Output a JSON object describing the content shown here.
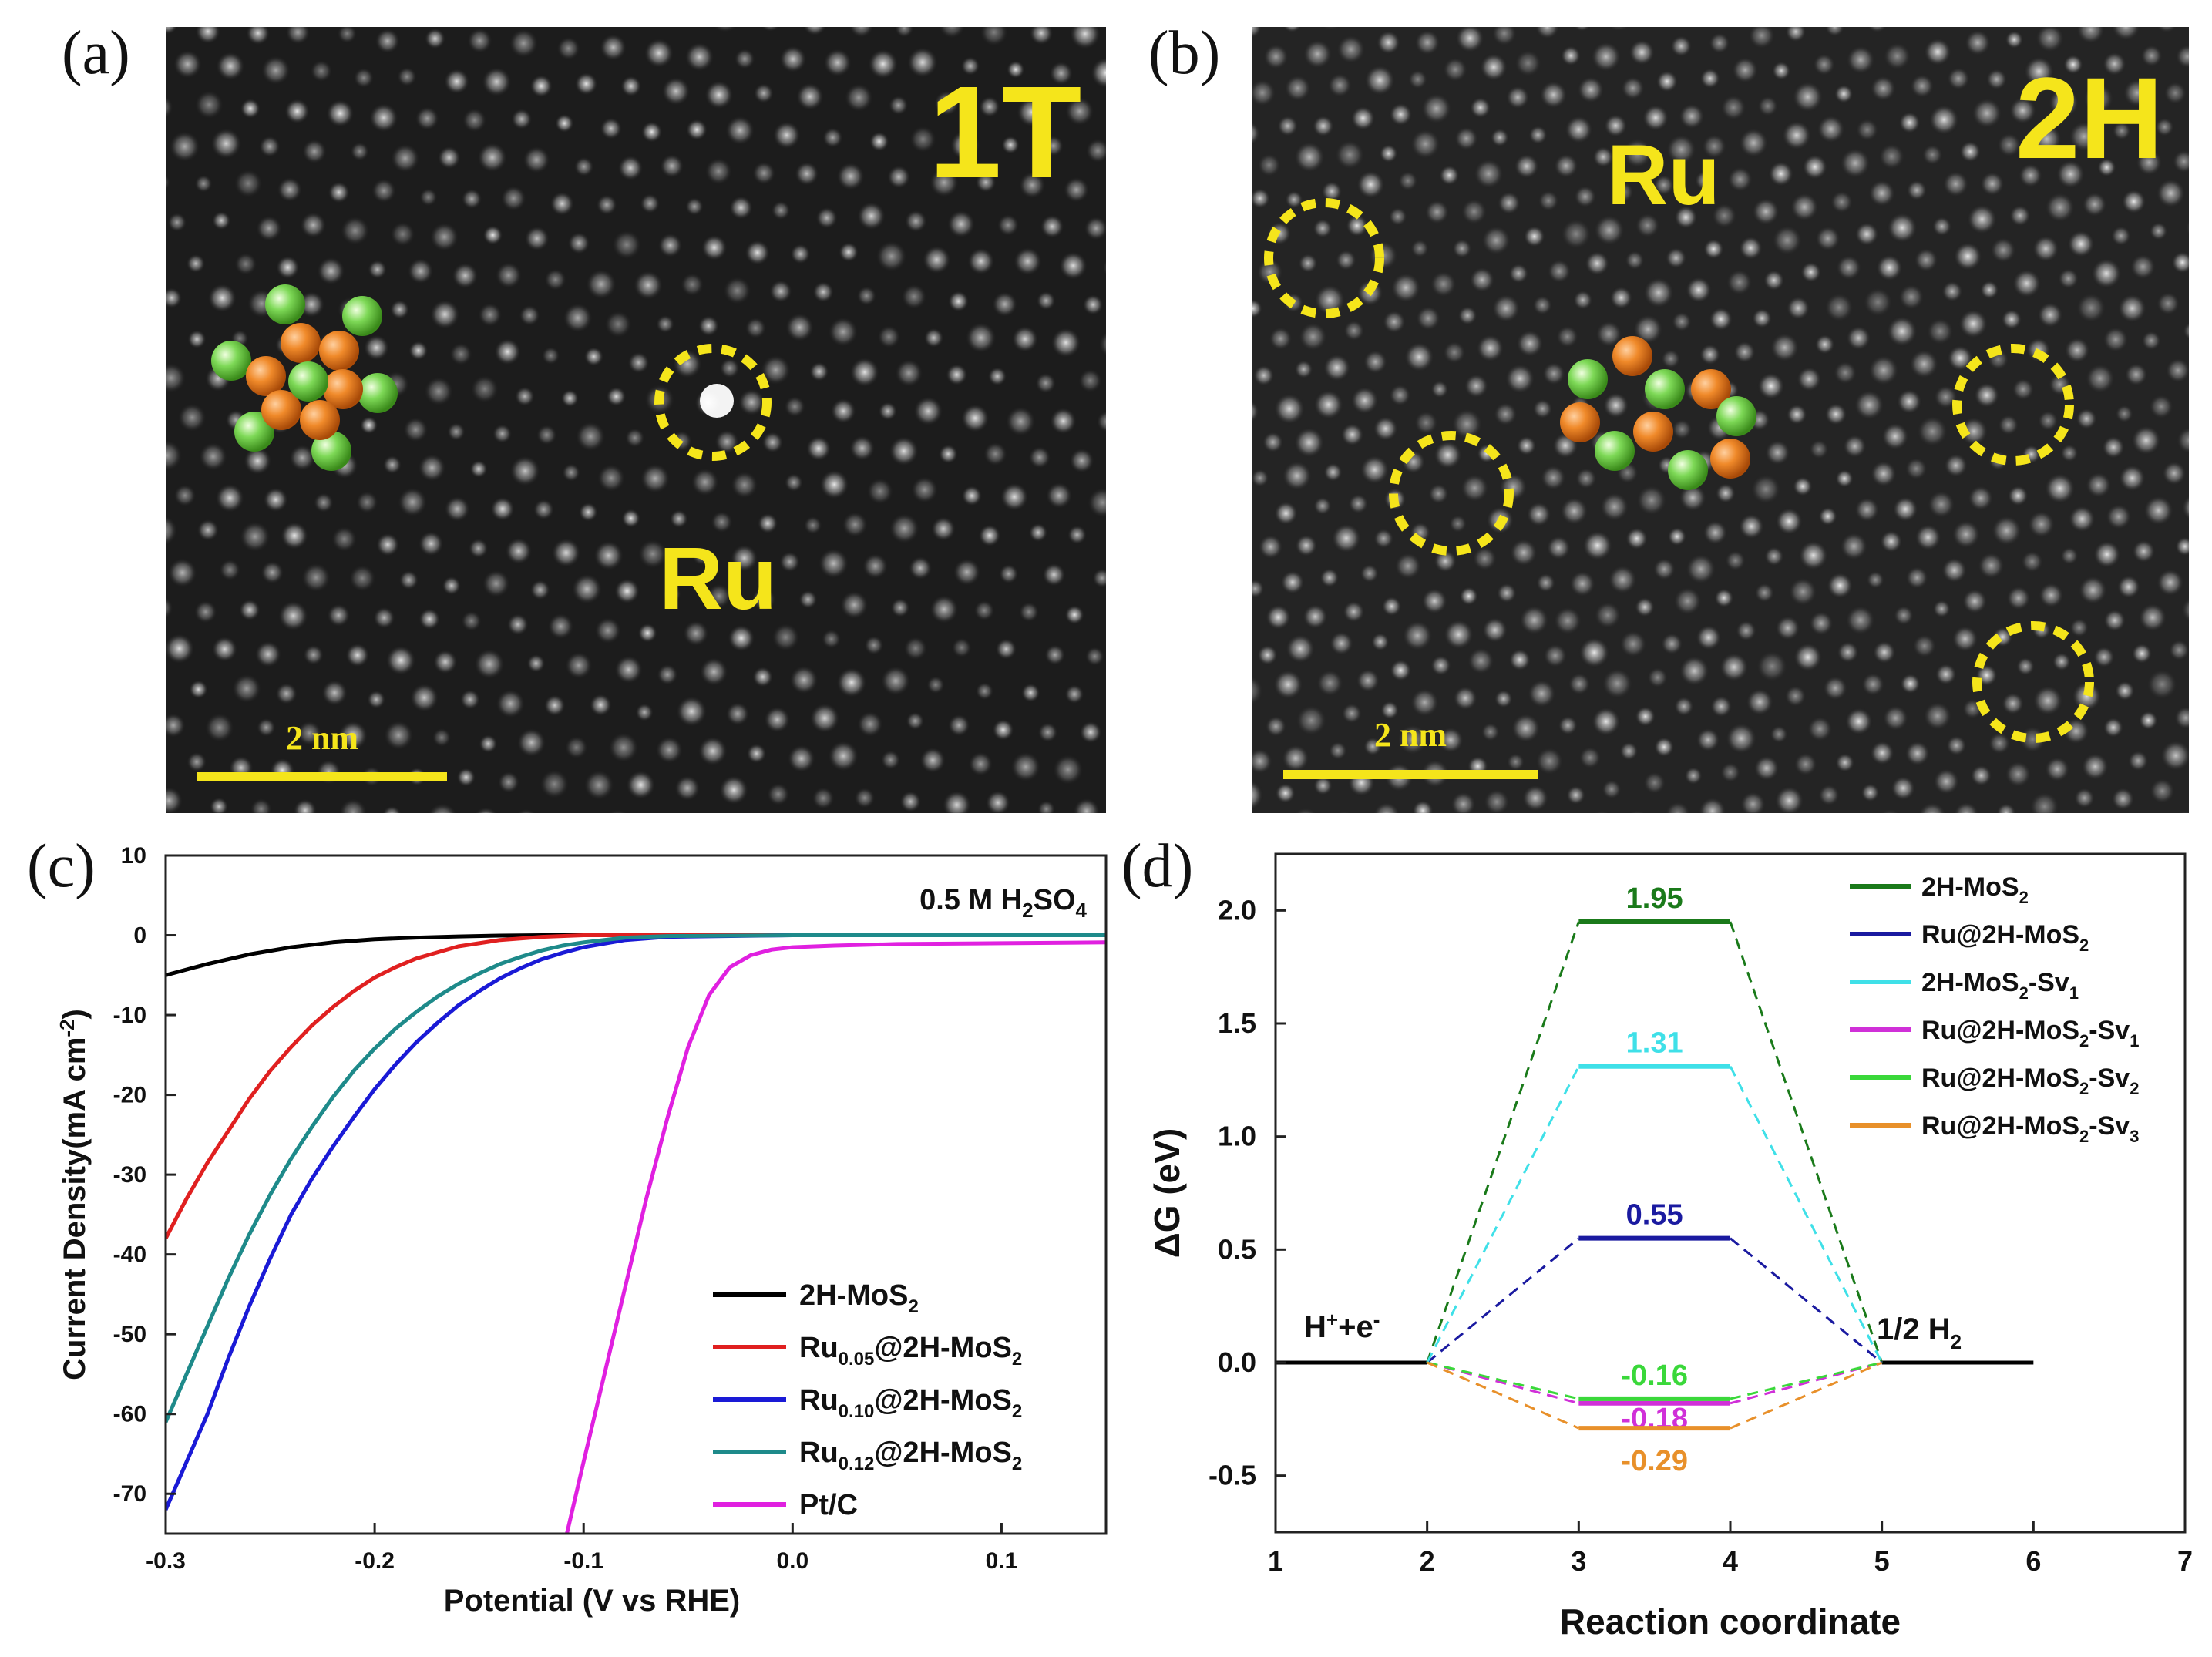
{
  "panels": {
    "a": {
      "label": "(a)",
      "phase": "1T",
      "atom_label": "Ru",
      "scale_bar": "2 nm"
    },
    "b": {
      "label": "(b)",
      "phase": "2H",
      "atom_label": "Ru",
      "scale_bar": "2 nm"
    },
    "c": {
      "label": "(c)"
    },
    "d": {
      "label": "(d)"
    }
  },
  "colors": {
    "yellow": "#f5e51b",
    "mo_orange": "#f08a2a",
    "s_green": "#7ed957",
    "tem_bg": "#1c1c1c"
  },
  "chart_data": [
    {
      "type": "line",
      "id": "c",
      "title": "",
      "annotation_main": "0.5 M H",
      "annotation_sub1": "2",
      "annotation_mid": "SO",
      "annotation_sub2": "4",
      "xlabel": "Potential (V vs RHE)",
      "ylabel_main": "Current Density(mA cm",
      "ylabel_sup": "-2",
      "ylabel_end": ")",
      "xlim": [
        -0.3,
        0.15
      ],
      "ylim": [
        -75,
        10
      ],
      "xticks": [
        -0.3,
        -0.2,
        -0.1,
        0.0,
        0.1
      ],
      "xtick_labels": [
        "-0.3",
        "-0.2",
        "-0.1",
        "0.0",
        "0.1"
      ],
      "yticks": [
        10,
        0,
        -10,
        -20,
        -30,
        -40,
        -50,
        -60,
        -70
      ],
      "ytick_labels": [
        "10",
        "0",
        "-10",
        "-20",
        "-30",
        "-40",
        "-50",
        "-60",
        "-70"
      ],
      "series": [
        {
          "name": "2H-MoS2",
          "legend_main": "2H-MoS",
          "legend_sub": "2",
          "legend_sub_pre": "",
          "legend_pre": "",
          "color": "#000000",
          "x": [
            -0.3,
            -0.28,
            -0.26,
            -0.24,
            -0.22,
            -0.2,
            -0.18,
            -0.16,
            -0.14,
            -0.12,
            -0.1,
            0.0,
            0.15
          ],
          "y": [
            -5.0,
            -3.6,
            -2.4,
            -1.5,
            -0.9,
            -0.5,
            -0.3,
            -0.15,
            -0.05,
            0,
            0,
            0,
            0
          ]
        },
        {
          "name": "Ru0.05@2H-MoS2",
          "legend_pre": "Ru",
          "legend_sub_pre": "0.05",
          "legend_main": "@2H-MoS",
          "legend_sub": "2",
          "color": "#e02020",
          "x": [
            -0.3,
            -0.29,
            -0.28,
            -0.27,
            -0.26,
            -0.25,
            -0.24,
            -0.23,
            -0.22,
            -0.21,
            -0.2,
            -0.19,
            -0.18,
            -0.16,
            -0.14,
            -0.12,
            -0.1,
            0.0,
            0.15
          ],
          "y": [
            -38,
            -33,
            -28.5,
            -24.5,
            -20.5,
            -17,
            -14,
            -11.3,
            -9,
            -7,
            -5.3,
            -4,
            -2.9,
            -1.4,
            -0.6,
            -0.2,
            0,
            0,
            0
          ]
        },
        {
          "name": "Ru0.10@2H-MoS2",
          "legend_pre": "Ru",
          "legend_sub_pre": "0.10",
          "legend_main": "@2H-MoS",
          "legend_sub": "2",
          "color": "#1a1ad6",
          "x": [
            -0.3,
            -0.29,
            -0.28,
            -0.27,
            -0.26,
            -0.25,
            -0.24,
            -0.23,
            -0.22,
            -0.21,
            -0.2,
            -0.19,
            -0.18,
            -0.17,
            -0.16,
            -0.15,
            -0.14,
            -0.13,
            -0.12,
            -0.11,
            -0.1,
            -0.08,
            -0.06,
            0.0,
            0.15
          ],
          "y": [
            -72,
            -66,
            -60,
            -53,
            -46.5,
            -40.5,
            -35,
            -30.5,
            -26.5,
            -22.8,
            -19.3,
            -16.2,
            -13.4,
            -11,
            -8.8,
            -7,
            -5.4,
            -4.1,
            -3,
            -2.2,
            -1.5,
            -0.6,
            -0.2,
            0,
            0
          ]
        },
        {
          "name": "Ru0.12@2H-MoS2",
          "legend_pre": "Ru",
          "legend_sub_pre": "0.12",
          "legend_main": "@2H-MoS",
          "legend_sub": "2",
          "color": "#1e8a8a",
          "x": [
            -0.3,
            -0.29,
            -0.28,
            -0.27,
            -0.26,
            -0.25,
            -0.24,
            -0.23,
            -0.22,
            -0.21,
            -0.2,
            -0.19,
            -0.18,
            -0.17,
            -0.16,
            -0.15,
            -0.14,
            -0.13,
            -0.12,
            -0.11,
            -0.1,
            -0.08,
            -0.06,
            0.0,
            0.15
          ],
          "y": [
            -61,
            -55,
            -49,
            -43,
            -37.5,
            -32.5,
            -28,
            -24,
            -20.3,
            -17,
            -14.2,
            -11.7,
            -9.6,
            -7.7,
            -6.1,
            -4.8,
            -3.6,
            -2.7,
            -1.9,
            -1.3,
            -0.9,
            -0.3,
            -0.1,
            0,
            0
          ]
        },
        {
          "name": "Pt/C",
          "legend_pre": "",
          "legend_sub_pre": "",
          "legend_main": "Pt/C",
          "legend_sub": "",
          "color": "#e020e0",
          "x": [
            -0.108,
            -0.1,
            -0.09,
            -0.08,
            -0.07,
            -0.06,
            -0.05,
            -0.04,
            -0.03,
            -0.02,
            -0.01,
            0.0,
            0.02,
            0.05,
            0.1,
            0.15
          ],
          "y": [
            -75,
            -66,
            -55,
            -44,
            -33,
            -23,
            -14,
            -7.5,
            -4,
            -2.5,
            -1.8,
            -1.5,
            -1.3,
            -1.1,
            -1.0,
            -0.9
          ]
        }
      ]
    },
    {
      "type": "line",
      "id": "d",
      "title": "",
      "xlabel": "Reaction coordinate",
      "ylabel": "ΔG (eV)",
      "xlim": [
        1,
        7
      ],
      "ylim": [
        -0.75,
        2.25
      ],
      "xticks": [
        1,
        2,
        3,
        4,
        5,
        6,
        7
      ],
      "xtick_labels": [
        "1",
        "2",
        "3",
        "4",
        "5",
        "6",
        "7"
      ],
      "yticks": [
        2.0,
        1.5,
        1.0,
        0.5,
        0.0,
        -0.5
      ],
      "ytick_labels": [
        "2.0",
        "1.5",
        "1.0",
        "0.5",
        "0.0",
        "-0.5"
      ],
      "start_label_main": "H",
      "start_label_sup1": "+",
      "start_label_mid": "+e",
      "start_label_sup2": "-",
      "end_label_main": "1/2 H",
      "end_label_sub": "2",
      "baseline": {
        "x_start": [
          1,
          2
        ],
        "x_end": [
          5,
          6
        ],
        "value": 0.0,
        "color": "#000000"
      },
      "series": [
        {
          "name": "2H-MoS2",
          "legend_main": "2H-MoS",
          "legend_sub": "2",
          "legend_tail": "",
          "legend_tail_sub": "",
          "value": 1.95,
          "label": "1.95",
          "color": "#1a7a1a"
        },
        {
          "name": "Ru@2H-MoS2",
          "legend_main": "Ru@2H-MoS",
          "legend_sub": "2",
          "legend_tail": "",
          "legend_tail_sub": "",
          "value": 0.55,
          "label": "0.55",
          "color": "#1a1aa0"
        },
        {
          "name": "2H-MoS2-Sv1",
          "legend_main": "2H-MoS",
          "legend_sub": "2",
          "legend_tail": "-Sv",
          "legend_tail_sub": "1",
          "value": 1.31,
          "label": "1.31",
          "color": "#3fe0e8"
        },
        {
          "name": "Ru@2H-MoS2-Sv1",
          "legend_main": "Ru@2H-MoS",
          "legend_sub": "2",
          "legend_tail": "-Sv",
          "legend_tail_sub": "1",
          "value": -0.18,
          "label": "-0.18",
          "color": "#d030d8"
        },
        {
          "name": "Ru@2H-MoS2-Sv2",
          "legend_main": "Ru@2H-MoS",
          "legend_sub": "2",
          "legend_tail": "-Sv",
          "legend_tail_sub": "2",
          "value": -0.16,
          "label": "-0.16",
          "color": "#3ad83a"
        },
        {
          "name": "Ru@2H-MoS2-Sv3",
          "legend_main": "Ru@2H-MoS",
          "legend_sub": "2",
          "legend_tail": "-Sv",
          "legend_tail_sub": "3",
          "value": -0.29,
          "label": "-0.29",
          "color": "#e8902a"
        }
      ]
    }
  ]
}
